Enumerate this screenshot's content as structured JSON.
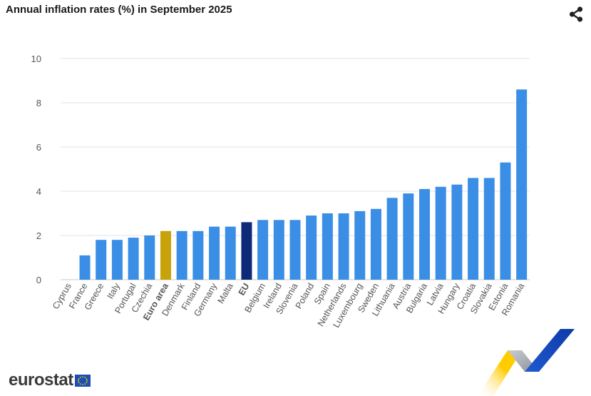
{
  "title": "Annual inflation rates (%) in September 2025",
  "share_icon": "share-icon",
  "logo": {
    "text": "eurostat",
    "icon": "eu-flag-icon"
  },
  "colors": {
    "country": "#3b8ee6",
    "euro_area": "#c8a20a",
    "eu": "#0c2a78",
    "grid": "#e3e3e3",
    "axis_text": "#555555"
  },
  "chart_data": {
    "type": "bar",
    "title": "Annual inflation rates (%) in September 2025",
    "xlabel": "",
    "ylabel": "",
    "ylim": [
      0,
      10
    ],
    "yticks": [
      0,
      2,
      4,
      6,
      8,
      10
    ],
    "grid": true,
    "categories": [
      "Cyprus",
      "France",
      "Greece",
      "Italy",
      "Portugal",
      "Czechia",
      "Euro area",
      "Denmark",
      "Finland",
      "Germany",
      "Malta",
      "EU",
      "Belgium",
      "Ireland",
      "Slovenia",
      "Poland",
      "Spain",
      "Netherlands",
      "Luxembourg",
      "Sweden",
      "Lithuania",
      "Austria",
      "Bulgaria",
      "Latvia",
      "Hungary",
      "Croatia",
      "Slovakia",
      "Estonia",
      "Romania"
    ],
    "values": [
      0.0,
      1.1,
      1.8,
      1.8,
      1.9,
      2.0,
      2.2,
      2.2,
      2.2,
      2.4,
      2.4,
      2.6,
      2.7,
      2.7,
      2.7,
      2.9,
      3.0,
      3.0,
      3.1,
      3.2,
      3.7,
      3.9,
      4.1,
      4.2,
      4.3,
      4.6,
      4.6,
      5.3,
      8.6
    ],
    "highlight": {
      "Euro area": "euro_area",
      "EU": "eu"
    }
  }
}
